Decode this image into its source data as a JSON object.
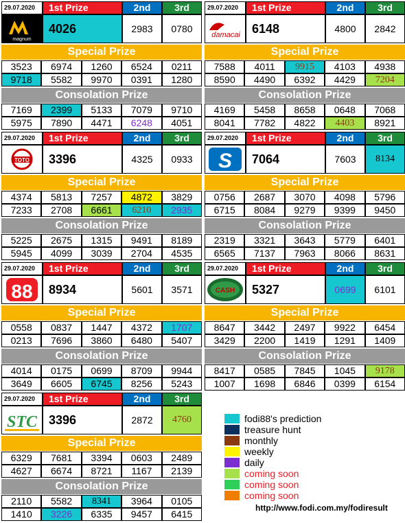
{
  "headers": {
    "first": "1st Prize",
    "second": "2nd",
    "third": "3rd"
  },
  "bands": {
    "special": "Special Prize",
    "consolation": "Consolation Prize"
  },
  "panels": [
    {
      "id": "magnum",
      "date": "29.07.2020",
      "logo_text": "magnum",
      "first": "4026",
      "second": "2983",
      "third": "0780",
      "first_hl": "cyan",
      "second_hl": "",
      "third_hl": "",
      "special": [
        [
          "3523",
          "6974",
          "1260",
          "6524",
          "0211"
        ],
        [
          "9718",
          "5582",
          "9970",
          "0391",
          "1280"
        ]
      ],
      "special_hl": [
        [
          "",
          "",
          "",
          "",
          ""
        ],
        [
          "cyan",
          "",
          "",
          "",
          ""
        ]
      ],
      "consolation": [
        [
          "7169",
          "2399",
          "5133",
          "7079",
          "9710"
        ],
        [
          "5975",
          "7890",
          "4471",
          "6248",
          "4051"
        ]
      ],
      "consolation_hl": [
        [
          "",
          "cyan",
          "",
          "",
          ""
        ],
        [
          "",
          "",
          "",
          "purple",
          ""
        ]
      ]
    },
    {
      "id": "damacai",
      "date": "29.07.2020",
      "logo_text": "damacai",
      "first": "6148",
      "second": "4800",
      "third": "2842",
      "first_hl": "",
      "second_hl": "",
      "third_hl": "",
      "special": [
        [
          "7588",
          "4011",
          "9915",
          "4103",
          "4938"
        ],
        [
          "8590",
          "4490",
          "6392",
          "4429",
          "7204"
        ]
      ],
      "special_hl": [
        [
          "",
          "",
          "cyan-brown",
          "",
          ""
        ],
        [
          "",
          "",
          "",
          "",
          "green-brown"
        ]
      ],
      "consolation": [
        [
          "4169",
          "5458",
          "8658",
          "0648",
          "7068"
        ],
        [
          "8041",
          "7782",
          "4822",
          "4403",
          "8921"
        ]
      ],
      "consolation_hl": [
        [
          "",
          "",
          "",
          "",
          ""
        ],
        [
          "",
          "",
          "",
          "green-brown",
          ""
        ]
      ]
    },
    {
      "id": "toto",
      "date": "29.07.2020",
      "logo_text": "TOTO",
      "first": "3396",
      "second": "4325",
      "third": "0933",
      "first_hl": "",
      "second_hl": "",
      "third_hl": "",
      "special": [
        [
          "4374",
          "5813",
          "7257",
          "4872",
          "3829"
        ],
        [
          "7233",
          "2708",
          "6661",
          "6210",
          "2935"
        ]
      ],
      "special_hl": [
        [
          "",
          "",
          "",
          "yellow",
          ""
        ],
        [
          "",
          "",
          "green",
          "cyan-brown",
          "cyan-purple"
        ]
      ],
      "consolation": [
        [
          "5225",
          "2675",
          "1315",
          "9491",
          "8189"
        ],
        [
          "5945",
          "4099",
          "3039",
          "2704",
          "4535"
        ]
      ],
      "consolation_hl": [
        [
          "",
          "",
          "",
          "",
          ""
        ],
        [
          "",
          "",
          "",
          "",
          ""
        ]
      ]
    },
    {
      "id": "sabah",
      "date": "29.07.2020",
      "logo_text": "S",
      "first": "7064",
      "second": "7603",
      "third": "8134",
      "first_hl": "",
      "second_hl": "",
      "third_hl": "cyan-serif",
      "special": [
        [
          "0756",
          "2687",
          "3070",
          "4098",
          "5796"
        ],
        [
          "6715",
          "8084",
          "9279",
          "9399",
          "9450"
        ]
      ],
      "special_hl": [
        [
          "",
          "",
          "",
          "",
          ""
        ],
        [
          "",
          "",
          "",
          "",
          ""
        ]
      ],
      "consolation": [
        [
          "2319",
          "3321",
          "3643",
          "5779",
          "6401"
        ],
        [
          "6565",
          "7137",
          "7963",
          "8066",
          "8631"
        ]
      ],
      "consolation_hl": [
        [
          "",
          "",
          "",
          "",
          ""
        ],
        [
          "",
          "",
          "",
          "",
          ""
        ]
      ]
    },
    {
      "id": "sandakan",
      "date": "29.07.2020",
      "logo_text": "88",
      "first": "8934",
      "second": "5601",
      "third": "3571",
      "first_hl": "",
      "second_hl": "",
      "third_hl": "",
      "special": [
        [
          "0558",
          "0837",
          "1447",
          "4372",
          "1707"
        ],
        [
          "0213",
          "7696",
          "3860",
          "6480",
          "5407"
        ]
      ],
      "special_hl": [
        [
          "",
          "",
          "",
          "",
          "cyan-purple"
        ],
        [
          "",
          "",
          "",
          "",
          ""
        ]
      ],
      "consolation": [
        [
          "4014",
          "0175",
          "0699",
          "8709",
          "9944"
        ],
        [
          "3649",
          "6605",
          "6745",
          "8256",
          "5243"
        ]
      ],
      "consolation_hl": [
        [
          "",
          "",
          "",
          "",
          ""
        ],
        [
          "",
          "",
          "cyan",
          "",
          ""
        ]
      ]
    },
    {
      "id": "cashsweep",
      "date": "29.07.2020",
      "logo_text": "CASH",
      "first": "5327",
      "second": "0699",
      "third": "6101",
      "first_hl": "",
      "second_hl": "cyan-purple",
      "third_hl": "",
      "special": [
        [
          "8647",
          "3442",
          "2497",
          "9922",
          "6454"
        ],
        [
          "3429",
          "2200",
          "1419",
          "1291",
          "1409"
        ]
      ],
      "special_hl": [
        [
          "",
          "",
          "",
          "",
          ""
        ],
        [
          "",
          "",
          "",
          "",
          ""
        ]
      ],
      "consolation": [
        [
          "8417",
          "0585",
          "7845",
          "1045",
          "9178"
        ],
        [
          "1007",
          "1698",
          "6846",
          "0399",
          "6154"
        ]
      ],
      "consolation_hl": [
        [
          "",
          "",
          "",
          "",
          "green-brown"
        ],
        [
          "",
          "",
          "",
          "",
          ""
        ]
      ]
    },
    {
      "id": "stc",
      "date": "29.07.2020",
      "logo_text": "STC",
      "first": "3396",
      "second": "2872",
      "third": "4760",
      "first_hl": "",
      "second_hl": "",
      "third_hl": "green-brown",
      "special": [
        [
          "6329",
          "7681",
          "3394",
          "0603",
          "2489"
        ],
        [
          "4627",
          "6674",
          "8721",
          "1167",
          "2139"
        ]
      ],
      "special_hl": [
        [
          "",
          "",
          "",
          "",
          ""
        ],
        [
          "",
          "",
          "",
          "",
          ""
        ]
      ],
      "consolation": [
        [
          "2110",
          "5582",
          "8341",
          "3964",
          "0105"
        ],
        [
          "1410",
          "3226",
          "6335",
          "9457",
          "6415"
        ]
      ],
      "consolation_hl": [
        [
          "",
          "",
          "cyan-serif",
          "",
          ""
        ],
        [
          "",
          "cyan-purple",
          "",
          "",
          ""
        ]
      ]
    }
  ],
  "legend": [
    {
      "color": "#16c7cf",
      "label": "fodi88's prediction",
      "text_color": "#000000"
    },
    {
      "color": "#0d2f5e",
      "label": "treasure hunt",
      "text_color": "#000000"
    },
    {
      "color": "#8b3a10",
      "label": "monthly",
      "text_color": "#000000"
    },
    {
      "color": "#fff200",
      "label": "weekly",
      "text_color": "#000000"
    },
    {
      "color": "#7b2fd0",
      "label": "daily",
      "text_color": "#000000"
    },
    {
      "color": "#a6e04b",
      "label": "coming soon",
      "text_color": "#ee1c24"
    },
    {
      "color": "#2fd05a",
      "label": "coming soon",
      "text_color": "#ee1c24"
    },
    {
      "color": "#f07d00",
      "label": "coming soon",
      "text_color": "#ee1c24"
    }
  ],
  "url": "http://www.fodi.com.my/fodiresult"
}
